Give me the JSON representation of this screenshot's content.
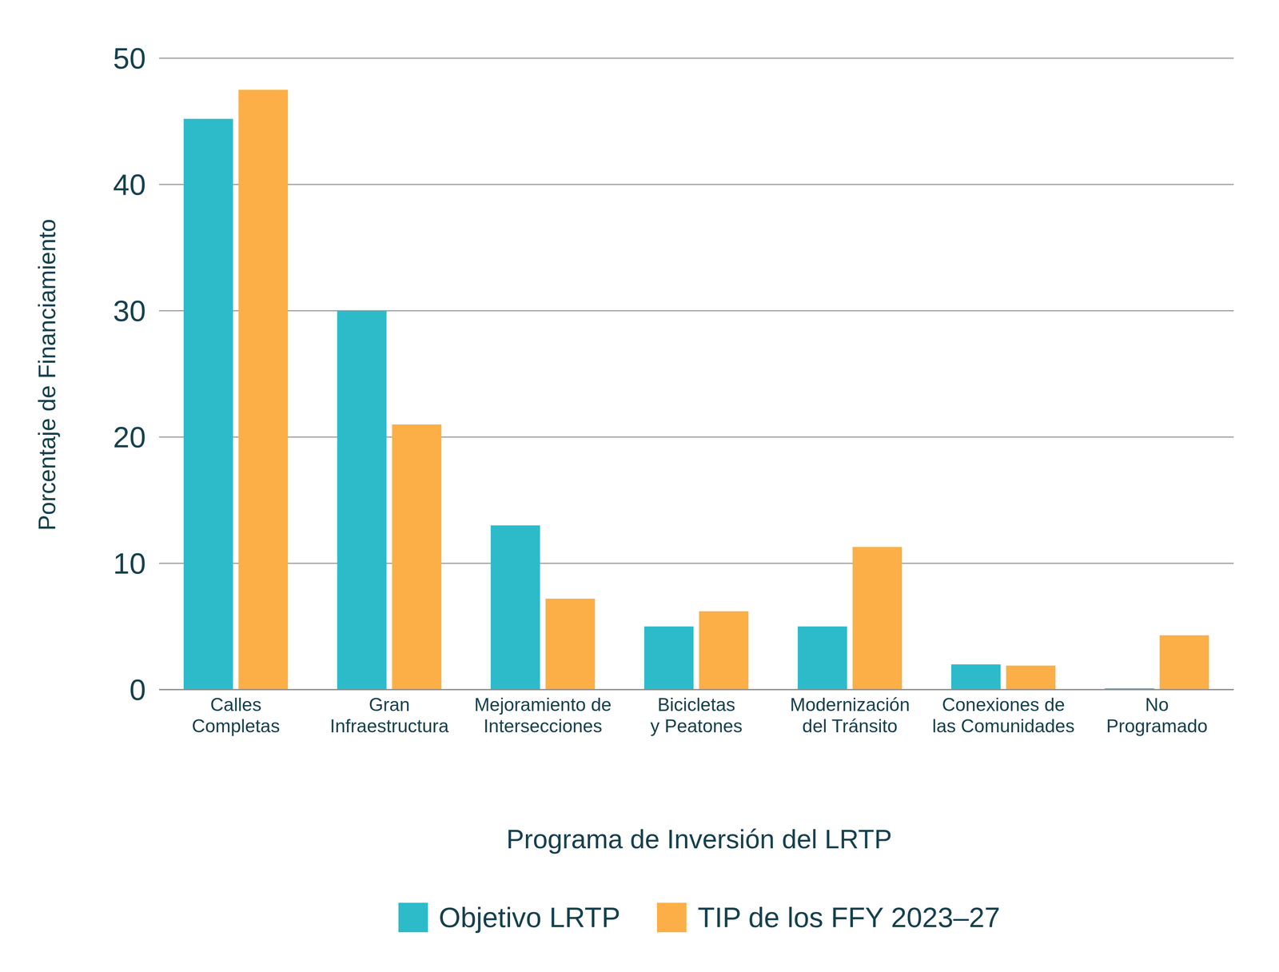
{
  "chart_data": {
    "type": "bar",
    "x_label": "Programa de Inversión del LRTP",
    "y_label": "Porcentaje de Financiamiento",
    "categories": [
      "Calles Completas",
      "Gran Infraestructura",
      "Mejoramiento de Intersecciones",
      "Bicicletas y Peatones",
      "Modernización del Tránsito",
      "Conexiones de las Comunidades",
      "No Programado"
    ],
    "series": [
      {
        "name": "Objetivo LRTP",
        "color": "#2dbbc9",
        "values": [
          45.2,
          30.0,
          13.0,
          5.0,
          5.0,
          2.0,
          0.1
        ]
      },
      {
        "name": "TIP de los FFY 2023–27",
        "color": "#fbaf46",
        "values": [
          47.5,
          21.0,
          7.2,
          6.2,
          11.3,
          1.9,
          4.3
        ]
      }
    ],
    "ylim": [
      0,
      50
    ],
    "yticks": [
      0,
      10,
      20,
      30,
      40,
      50
    ],
    "grid": true,
    "legend": "bottom"
  }
}
